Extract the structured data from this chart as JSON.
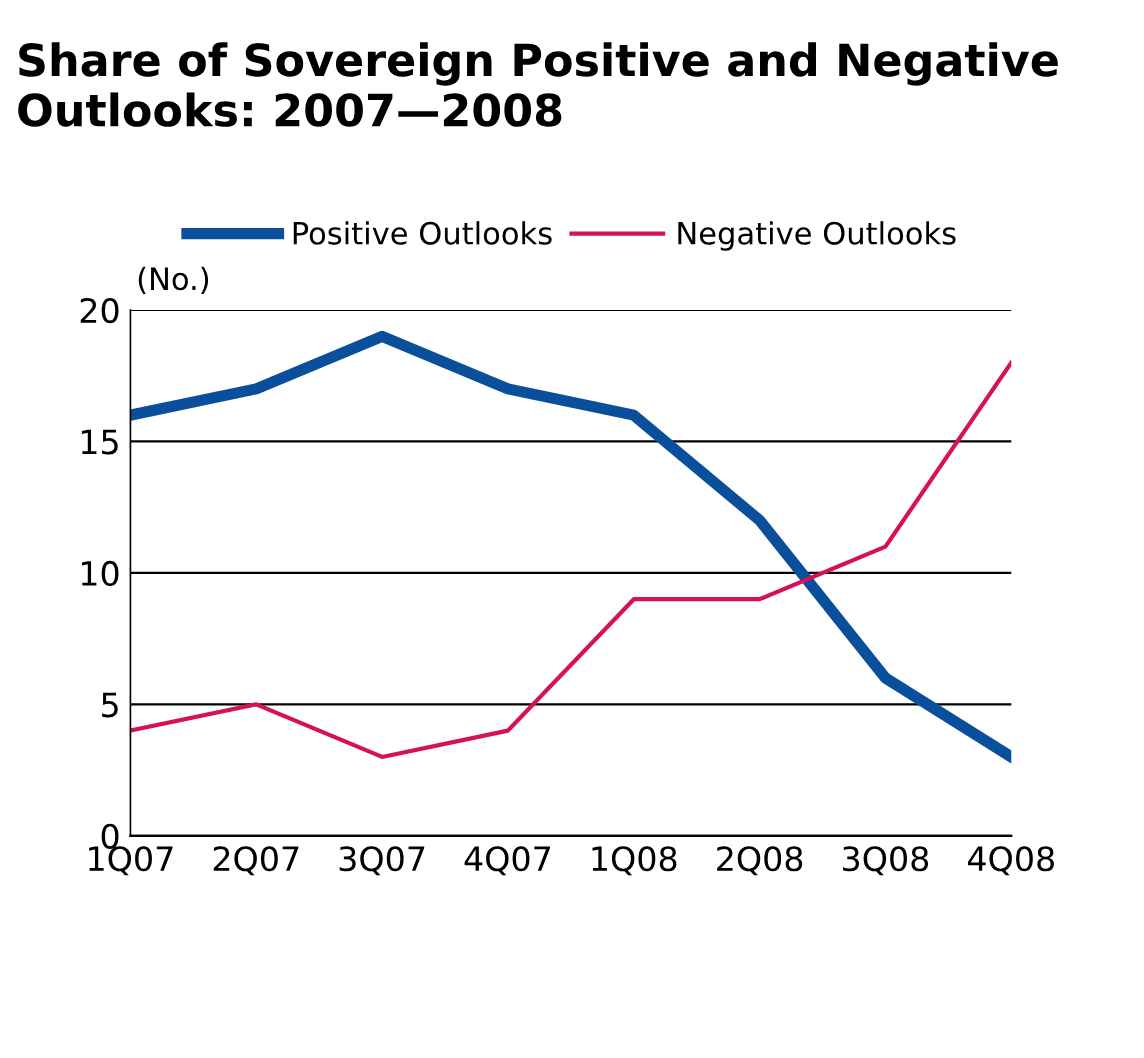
{
  "chart_data": {
    "type": "line",
    "title": "Share of Sovereign Positive and Negative Outlooks: 2007—2008",
    "ylabel": "(No.)",
    "categories": [
      "1Q07",
      "2Q07",
      "3Q07",
      "4Q07",
      "1Q08",
      "2Q08",
      "3Q08",
      "4Q08"
    ],
    "series": [
      {
        "name": "Positive Outlooks",
        "color": "#0a4f9c",
        "values": [
          16,
          17,
          19,
          17,
          16,
          12,
          6,
          3
        ]
      },
      {
        "name": "Negative Outlooks",
        "color": "#d6105a",
        "values": [
          4,
          5,
          3,
          4,
          9,
          9,
          11,
          18
        ]
      }
    ],
    "ylim": [
      0,
      20
    ],
    "yticks": [
      0,
      5,
      10,
      15,
      20
    ],
    "grid": "y",
    "legend": "top",
    "marker": "none",
    "line_style": "solid"
  }
}
